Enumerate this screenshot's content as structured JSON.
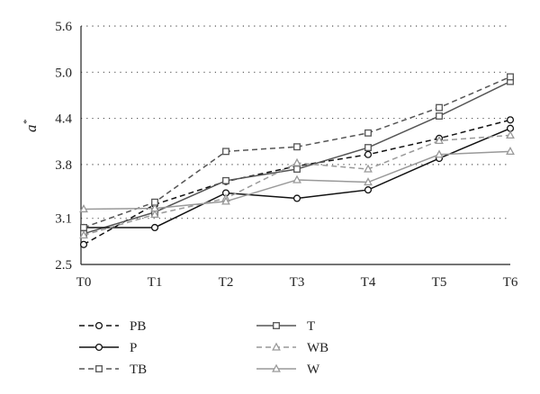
{
  "chart_data": {
    "type": "line",
    "ylabel": "a",
    "ylabel_sup": "*",
    "xlabel": "",
    "x": [
      "T0",
      "T1",
      "T2",
      "T3",
      "T4",
      "T5",
      "T6"
    ],
    "yticks": [
      "2.5",
      "3.1",
      "3.8",
      "4.4",
      "5.0",
      "5.6"
    ],
    "ylim": [
      2.5,
      5.6
    ],
    "grid": "horizontal dotted",
    "legend_position": "bottom",
    "series": [
      {
        "name": "PB",
        "values": [
          2.76,
          3.28,
          3.58,
          3.78,
          3.93,
          4.14,
          4.38
        ],
        "color": "#111111",
        "dash": "6,4",
        "marker": "circle",
        "fill": "#ffffff"
      },
      {
        "name": "T",
        "values": [
          2.9,
          3.18,
          3.59,
          3.74,
          4.02,
          4.43,
          4.88
        ],
        "color": "#555555",
        "dash": "",
        "marker": "square",
        "fill": "#ffffff"
      },
      {
        "name": "P",
        "values": [
          2.98,
          2.98,
          3.43,
          3.36,
          3.47,
          3.88,
          4.27
        ],
        "color": "#111111",
        "dash": "",
        "marker": "circle",
        "fill": "#ffffff"
      },
      {
        "name": "WB",
        "values": [
          2.88,
          3.15,
          3.36,
          3.82,
          3.74,
          4.11,
          4.18
        ],
        "color": "#999999",
        "dash": "6,4",
        "marker": "triangle",
        "fill": "#ffffff"
      },
      {
        "name": "TB",
        "values": [
          2.98,
          3.31,
          3.97,
          4.03,
          4.21,
          4.54,
          4.94
        ],
        "color": "#555555",
        "dash": "6,4",
        "marker": "square",
        "fill": "#ffffff"
      },
      {
        "name": "W",
        "values": [
          3.22,
          3.23,
          3.32,
          3.6,
          3.57,
          3.93,
          3.97
        ],
        "color": "#999999",
        "dash": "",
        "marker": "triangle",
        "fill": "#ffffff"
      }
    ]
  }
}
